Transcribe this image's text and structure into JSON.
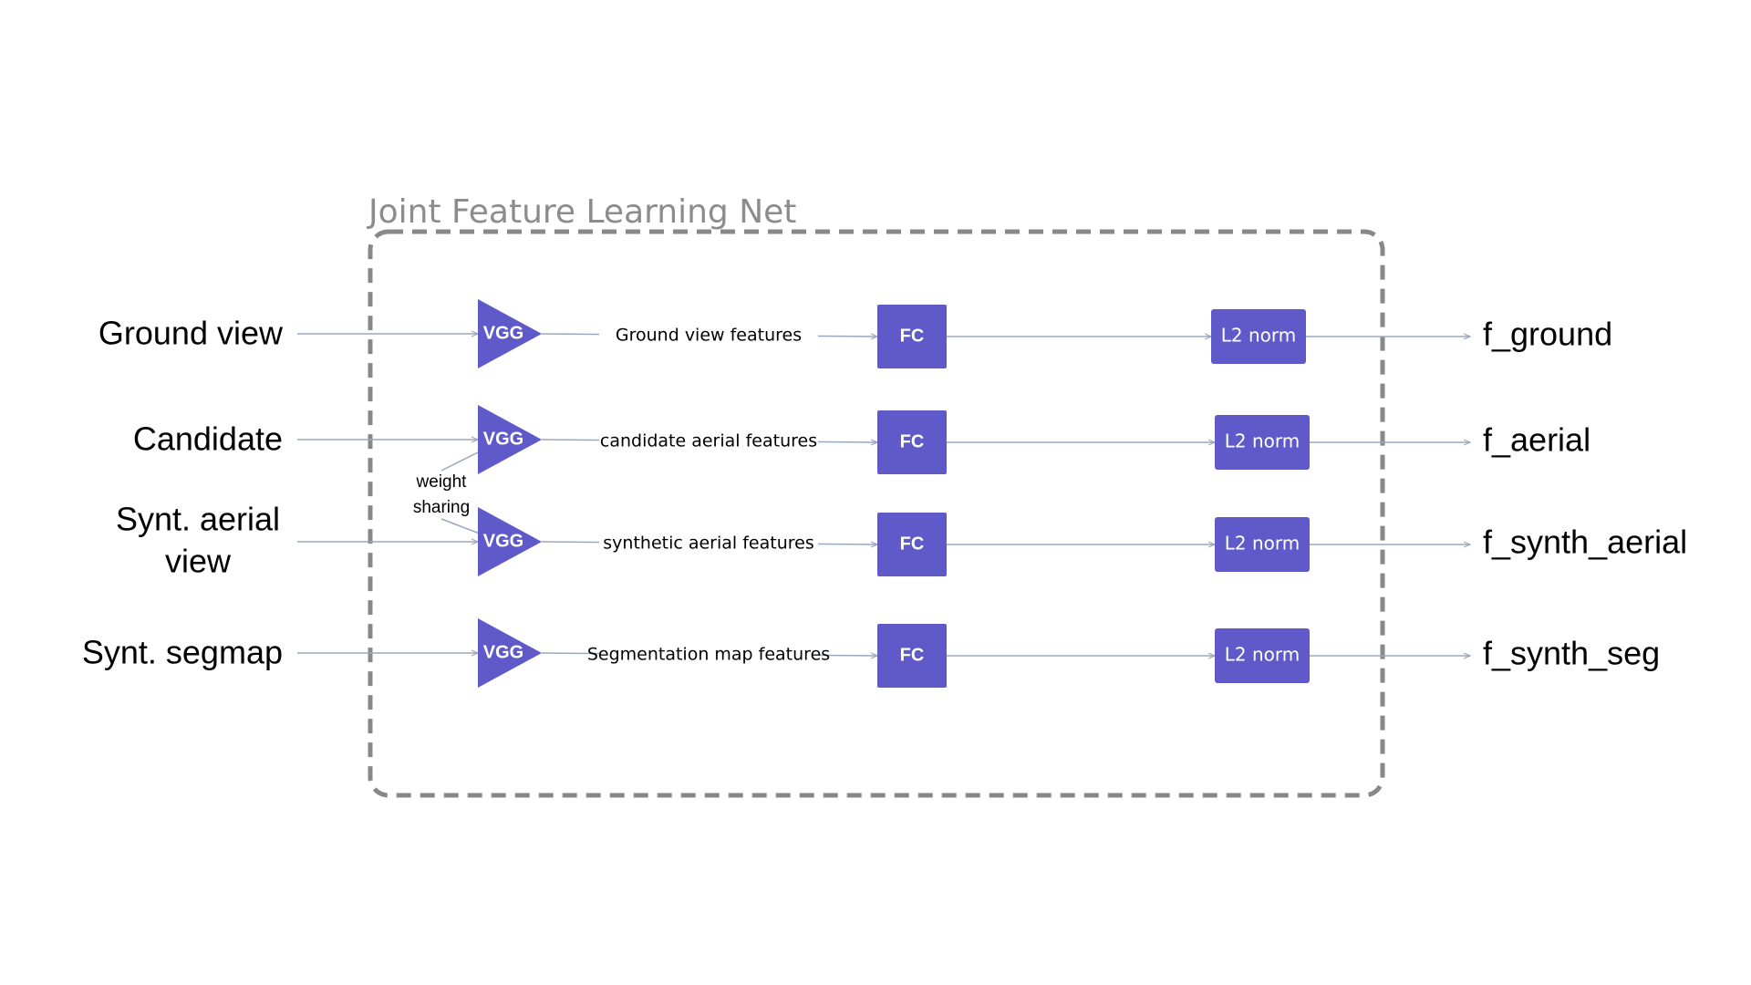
{
  "title": "Joint Feature Learning Net",
  "weight_sharing": [
    "weight",
    "sharing"
  ],
  "block_labels": {
    "vgg": "VGG",
    "fc": "FC",
    "norm": "L2 norm"
  },
  "colors": {
    "block": "#6059c9",
    "connector": "#9aa8bc",
    "border": "#888888",
    "title": "#8c8c8c",
    "text": "#000000"
  },
  "rows": [
    {
      "input": [
        "Ground view"
      ],
      "features": "Ground view features",
      "output": "f_ground"
    },
    {
      "input": [
        "Candidate"
      ],
      "features": "candidate aerial features",
      "output": "f_aerial"
    },
    {
      "input": [
        "Synt. aerial",
        "view"
      ],
      "features": "synthetic aerial features",
      "output": "f_synth_aerial"
    },
    {
      "input": [
        "Synt. segmap"
      ],
      "features": "Segmentation map features",
      "output": "f_synth_seg"
    }
  ]
}
